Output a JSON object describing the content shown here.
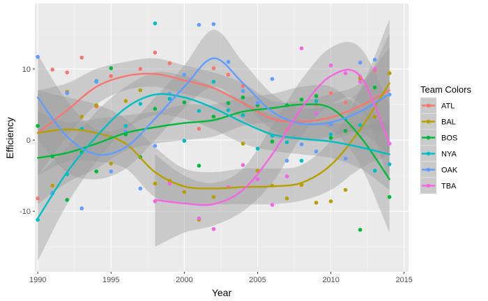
{
  "chart_data": {
    "type": "scatter",
    "smoother": "loess",
    "confidence_bands": true,
    "title": "",
    "xlabel": "Year",
    "ylabel": "Efficiency",
    "xlim": [
      1989.8,
      2015.3
    ],
    "ylim": [
      -18.5,
      19.2
    ],
    "x_ticks": [
      1990,
      1995,
      2000,
      2005,
      2010,
      2015
    ],
    "y_ticks": [
      -10,
      0,
      10
    ],
    "grid": true,
    "legend_title": "Team Colors",
    "legend_position": "right",
    "series": [
      {
        "name": "ATL",
        "color": "#F8766D",
        "points": [
          [
            1990,
            -8.2
          ],
          [
            1991,
            9.9
          ],
          [
            1992,
            9.5
          ],
          [
            1993,
            11.6
          ],
          [
            1994,
            4.7
          ],
          [
            1995,
            9.0
          ],
          [
            1997,
            10.0
          ],
          [
            1998,
            12.3
          ],
          [
            1999,
            10.8
          ],
          [
            2000,
            5.3
          ],
          [
            2001,
            1.6
          ],
          [
            2002,
            10.1
          ],
          [
            2003,
            9.2
          ],
          [
            2004,
            7.6
          ],
          [
            2005,
            4.8
          ],
          [
            2007,
            1.4
          ],
          [
            2009,
            5.0
          ],
          [
            2010,
            6.6
          ],
          [
            2011,
            5.3
          ],
          [
            2012,
            8.9
          ],
          [
            2013,
            9.8
          ],
          [
            2014,
            9.4
          ]
        ],
        "smooth": [
          [
            1990,
            1.0
          ],
          [
            1992,
            4.2
          ],
          [
            1994,
            7.5
          ],
          [
            1996,
            9.0
          ],
          [
            1998,
            9.3
          ],
          [
            2000,
            8.4
          ],
          [
            2002,
            7.3
          ],
          [
            2004,
            5.2
          ],
          [
            2006,
            3.0
          ],
          [
            2008,
            2.6
          ],
          [
            2010,
            3.2
          ],
          [
            2012,
            4.8
          ],
          [
            2014,
            7.0
          ]
        ],
        "band": [
          [
            1990,
            -5,
            7
          ],
          [
            1992,
            0.5,
            8
          ],
          [
            1994,
            5,
            10
          ],
          [
            1996,
            7,
            11
          ],
          [
            1998,
            7.5,
            11.5
          ],
          [
            2000,
            6.5,
            10.5
          ],
          [
            2002,
            5.5,
            9.5
          ],
          [
            2004,
            3,
            8
          ],
          [
            2006,
            0.5,
            5.5
          ],
          [
            2008,
            0,
            5.5
          ],
          [
            2010,
            0.5,
            6.5
          ],
          [
            2012,
            1.5,
            8
          ],
          [
            2014,
            1,
            13
          ]
        ]
      },
      {
        "name": "BAL",
        "color": "#B79F00",
        "points": [
          [
            1991,
            -6.4
          ],
          [
            1992,
            6.8
          ],
          [
            1993,
            3.3
          ],
          [
            1994,
            4.9
          ],
          [
            1995,
            -3.3
          ],
          [
            1996,
            5.5
          ],
          [
            1997,
            7.0
          ],
          [
            1998,
            -6.1
          ],
          [
            1999,
            -5.7
          ],
          [
            2000,
            -7.3
          ],
          [
            2001,
            -11.2
          ],
          [
            2002,
            -8.0
          ],
          [
            2003,
            -6.6
          ],
          [
            2004,
            -0.5
          ],
          [
            2005,
            -4.3
          ],
          [
            2006,
            -6.4
          ],
          [
            2007,
            -8.2
          ],
          [
            2008,
            -6.3
          ],
          [
            2009,
            -8.8
          ],
          [
            2010,
            -8.6
          ],
          [
            2011,
            -7.0
          ],
          [
            2012,
            8.6
          ],
          [
            2013,
            3.3
          ],
          [
            2014,
            9.4
          ]
        ],
        "smooth": [
          [
            1990,
            1.0
          ],
          [
            1992,
            1.5
          ],
          [
            1994,
            1.0
          ],
          [
            1996,
            -0.5
          ],
          [
            1998,
            -4.5
          ],
          [
            2000,
            -6.5
          ],
          [
            2002,
            -6.8
          ],
          [
            2004,
            -6.6
          ],
          [
            2006,
            -6.5
          ],
          [
            2008,
            -6.0
          ],
          [
            2010,
            -3.5
          ],
          [
            2012,
            1.5
          ],
          [
            2014,
            8.0
          ]
        ],
        "band": [
          [
            1990,
            -5,
            7
          ],
          [
            1992,
            -3,
            6
          ],
          [
            1994,
            -3,
            5
          ],
          [
            1996,
            -4,
            3
          ],
          [
            1998,
            -8,
            -1
          ],
          [
            2000,
            -9,
            -4
          ],
          [
            2002,
            -9,
            -4.5
          ],
          [
            2004,
            -9,
            -4
          ],
          [
            2006,
            -9,
            -4
          ],
          [
            2008,
            -8.5,
            -3.5
          ],
          [
            2010,
            -7,
            0
          ],
          [
            2012,
            -4,
            7
          ],
          [
            2014,
            -2,
            17
          ]
        ]
      },
      {
        "name": "BOS",
        "color": "#00BA38",
        "points": [
          [
            1990,
            2.0
          ],
          [
            1991,
            -2.3
          ],
          [
            1992,
            -8.4
          ],
          [
            1993,
            -1.7
          ],
          [
            1994,
            -4.4
          ],
          [
            1995,
            10.1
          ],
          [
            1996,
            0.8
          ],
          [
            1997,
            -2.4
          ],
          [
            1998,
            4.4
          ],
          [
            2000,
            5.3
          ],
          [
            2001,
            -3.6
          ],
          [
            2002,
            3.3
          ],
          [
            2003,
            5.2
          ],
          [
            2004,
            6.0
          ],
          [
            2005,
            4.9
          ],
          [
            2006,
            -0.2
          ],
          [
            2007,
            4.9
          ],
          [
            2008,
            5.7
          ],
          [
            2009,
            6.2
          ],
          [
            2010,
            0.3
          ],
          [
            2011,
            1.3
          ],
          [
            2012,
            -12.6
          ],
          [
            2013,
            7.4
          ],
          [
            2014,
            -8.0
          ]
        ],
        "smooth": [
          [
            1990,
            -2.5
          ],
          [
            1992,
            -1.8
          ],
          [
            1994,
            -0.5
          ],
          [
            1996,
            1.0
          ],
          [
            1998,
            1.8
          ],
          [
            2000,
            2.4
          ],
          [
            2002,
            2.8
          ],
          [
            2004,
            4.0
          ],
          [
            2006,
            4.5
          ],
          [
            2008,
            5.0
          ],
          [
            2010,
            4.5
          ],
          [
            2012,
            0.5
          ],
          [
            2014,
            -5.5
          ]
        ],
        "band": [
          [
            1990,
            -9,
            4
          ],
          [
            1992,
            -6,
            2.5
          ],
          [
            1994,
            -4,
            3
          ],
          [
            1996,
            -1.5,
            3.5
          ],
          [
            1998,
            -0.5,
            4
          ],
          [
            2000,
            0,
            5
          ],
          [
            2002,
            0.5,
            5
          ],
          [
            2004,
            2,
            6
          ],
          [
            2006,
            2.5,
            6.5
          ],
          [
            2008,
            2.5,
            7.5
          ],
          [
            2010,
            1.5,
            7.5
          ],
          [
            2012,
            -3.5,
            4.5
          ],
          [
            2014,
            -13,
            2
          ]
        ]
      },
      {
        "name": "NYA",
        "color": "#00BFC4",
        "points": [
          [
            1990,
            -11.2
          ],
          [
            1991,
            -7.5
          ],
          [
            1992,
            -4.8
          ],
          [
            1993,
            1.6
          ],
          [
            1994,
            8.3
          ],
          [
            1995,
            0.4
          ],
          [
            1996,
            2.0
          ],
          [
            1997,
            5.1
          ],
          [
            1998,
            16.4
          ],
          [
            1999,
            5.8
          ],
          [
            2000,
            -0.1
          ],
          [
            2001,
            4.1
          ],
          [
            2002,
            8.2
          ],
          [
            2003,
            4.2
          ],
          [
            2004,
            3.5
          ],
          [
            2005,
            -1.2
          ],
          [
            2006,
            0.6
          ],
          [
            2007,
            -0.3
          ],
          [
            2008,
            -2.9
          ],
          [
            2009,
            5.5
          ],
          [
            2010,
            0.8
          ],
          [
            2011,
            3.0
          ],
          [
            2012,
            2.1
          ],
          [
            2013,
            -4.3
          ],
          [
            2014,
            -3.4
          ]
        ],
        "smooth": [
          [
            1990,
            -11.0
          ],
          [
            1992,
            -4.5
          ],
          [
            1994,
            0.5
          ],
          [
            1996,
            4.5
          ],
          [
            1998,
            6.4
          ],
          [
            2000,
            6.0
          ],
          [
            2002,
            4.5
          ],
          [
            2004,
            2.5
          ],
          [
            2006,
            0.8
          ],
          [
            2008,
            0.2
          ],
          [
            2010,
            -0.2
          ],
          [
            2012,
            -1.0
          ],
          [
            2014,
            -2.0
          ]
        ],
        "band": [
          [
            1990,
            -17,
            -5
          ],
          [
            1992,
            -9,
            -1
          ],
          [
            1994,
            -3,
            4
          ],
          [
            1996,
            1.5,
            7.5
          ],
          [
            1998,
            3.5,
            9.5
          ],
          [
            2000,
            3,
            9
          ],
          [
            2002,
            1.5,
            7.5
          ],
          [
            2004,
            -0.5,
            5.5
          ],
          [
            2006,
            -1.5,
            3.5
          ],
          [
            2008,
            -2,
            2.5
          ],
          [
            2010,
            -2.5,
            2.5
          ],
          [
            2012,
            -4,
            2
          ],
          [
            2014,
            -7,
            3
          ]
        ]
      },
      {
        "name": "OAK",
        "color": "#619CFF",
        "points": [
          [
            1990,
            11.7
          ],
          [
            1991,
            -7.4
          ],
          [
            1992,
            6.6
          ],
          [
            1993,
            -9.6
          ],
          [
            1994,
            8.2
          ],
          [
            1995,
            -4.4
          ],
          [
            1996,
            1.2
          ],
          [
            1997,
            -6.8
          ],
          [
            1998,
            -0.8
          ],
          [
            1999,
            6.5
          ],
          [
            2000,
            9.2
          ],
          [
            2001,
            16.2
          ],
          [
            2002,
            16.3
          ],
          [
            2003,
            11.0
          ],
          [
            2004,
            6.9
          ],
          [
            2005,
            5.2
          ],
          [
            2006,
            8.6
          ],
          [
            2007,
            -2.9
          ],
          [
            2008,
            -0.6
          ],
          [
            2009,
            -1.6
          ],
          [
            2010,
            2.2
          ],
          [
            2011,
            -2.6
          ],
          [
            2012,
            10.9
          ],
          [
            2013,
            11.3
          ],
          [
            2014,
            6.4
          ]
        ],
        "smooth": [
          [
            1990,
            6.0
          ],
          [
            1992,
            0.5
          ],
          [
            1994,
            -2.0
          ],
          [
            1996,
            -1.0
          ],
          [
            1998,
            3.0
          ],
          [
            2000,
            7.5
          ],
          [
            2002,
            11.5
          ],
          [
            2004,
            8.0
          ],
          [
            2006,
            4.0
          ],
          [
            2008,
            2.3
          ],
          [
            2010,
            2.5
          ],
          [
            2012,
            4.0
          ],
          [
            2014,
            6.5
          ]
        ],
        "band": [
          [
            1990,
            0,
            12
          ],
          [
            1992,
            -4.5,
            5.5
          ],
          [
            1994,
            -5.5,
            1.5
          ],
          [
            1996,
            -4,
            2
          ],
          [
            1998,
            0,
            6
          ],
          [
            2000,
            4.5,
            10.5
          ],
          [
            2002,
            7.5,
            15.5
          ],
          [
            2004,
            5,
            11
          ],
          [
            2006,
            1.5,
            6.5
          ],
          [
            2008,
            0,
            4.5
          ],
          [
            2010,
            0,
            5
          ],
          [
            2012,
            1,
            7
          ],
          [
            2014,
            -2,
            15
          ]
        ]
      },
      {
        "name": "TBA",
        "color": "#F564E3",
        "points": [
          [
            1998,
            -8.6
          ],
          [
            1999,
            -6.1
          ],
          [
            2001,
            -11.0
          ],
          [
            2002,
            -12.5
          ],
          [
            2003,
            -6.6
          ],
          [
            2004,
            -3.5
          ],
          [
            2005,
            -5.5
          ],
          [
            2006,
            -9.1
          ],
          [
            2007,
            -5.1
          ],
          [
            2008,
            12.9
          ],
          [
            2009,
            3.8
          ],
          [
            2010,
            10.5
          ],
          [
            2011,
            9.4
          ],
          [
            2012,
            8.2
          ],
          [
            2013,
            10.0
          ],
          [
            2014,
            -0.5
          ]
        ],
        "smooth": [
          [
            1998,
            -8.4
          ],
          [
            2000,
            -8.9
          ],
          [
            2002,
            -9.0
          ],
          [
            2004,
            -7.0
          ],
          [
            2006,
            -2.0
          ],
          [
            2008,
            4.5
          ],
          [
            2010,
            9.0
          ],
          [
            2012,
            9.0
          ],
          [
            2014,
            -0.5
          ]
        ],
        "band": [
          [
            1998,
            -15,
            -2
          ],
          [
            2000,
            -13,
            -5
          ],
          [
            2002,
            -12,
            -6
          ],
          [
            2004,
            -10,
            -4
          ],
          [
            2006,
            -6,
            2
          ],
          [
            2008,
            0.5,
            8.5
          ],
          [
            2010,
            5,
            13
          ],
          [
            2012,
            5,
            13
          ],
          [
            2014,
            -6,
            5
          ]
        ]
      }
    ]
  }
}
